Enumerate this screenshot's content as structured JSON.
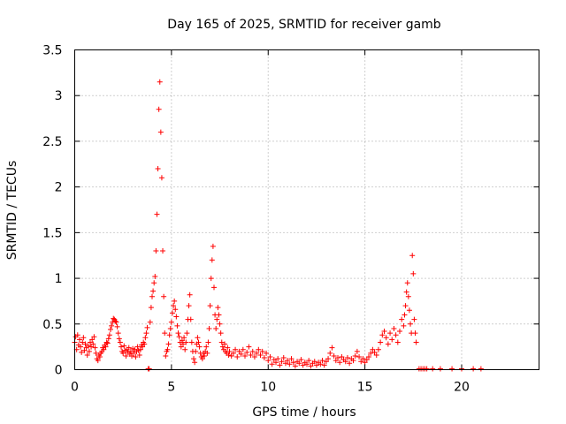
{
  "chart_data": {
    "type": "scatter",
    "title": "Day 165 of 2025, SRMTID for receiver gamb",
    "xlabel": "GPS time / hours",
    "ylabel": "SRMTID / TECUs",
    "xlim": [
      0,
      24
    ],
    "ylim": [
      0,
      3.5
    ],
    "x_ticks": [
      0,
      5,
      10,
      15,
      20
    ],
    "x_tick_labels": [
      "0",
      "5",
      "10",
      "15",
      "20"
    ],
    "y_ticks": [
      0,
      0.5,
      1,
      1.5,
      2,
      2.5,
      3,
      3.5
    ],
    "y_tick_labels": [
      "0",
      "0.5",
      "1",
      "1.5",
      "2",
      "2.5",
      "3",
      "3.5"
    ],
    "grid": true,
    "marker": "plus",
    "color": "#ff0000",
    "series": [
      {
        "name": "SRMTID",
        "points": [
          [
            0.0,
            0.3
          ],
          [
            0.05,
            0.36
          ],
          [
            0.1,
            0.22
          ],
          [
            0.15,
            0.38
          ],
          [
            0.2,
            0.27
          ],
          [
            0.25,
            0.33
          ],
          [
            0.3,
            0.25
          ],
          [
            0.35,
            0.19
          ],
          [
            0.4,
            0.3
          ],
          [
            0.45,
            0.35
          ],
          [
            0.5,
            0.21
          ],
          [
            0.55,
            0.28
          ],
          [
            0.6,
            0.24
          ],
          [
            0.65,
            0.16
          ],
          [
            0.7,
            0.26
          ],
          [
            0.75,
            0.2
          ],
          [
            0.8,
            0.3
          ],
          [
            0.85,
            0.25
          ],
          [
            0.9,
            0.33
          ],
          [
            0.95,
            0.28
          ],
          [
            1.0,
            0.36
          ],
          [
            1.05,
            0.24
          ],
          [
            1.1,
            0.18
          ],
          [
            1.15,
            0.12
          ],
          [
            1.2,
            0.1
          ],
          [
            1.25,
            0.16
          ],
          [
            1.3,
            0.14
          ],
          [
            1.35,
            0.18
          ],
          [
            1.4,
            0.2
          ],
          [
            1.45,
            0.24
          ],
          [
            1.5,
            0.22
          ],
          [
            1.55,
            0.27
          ],
          [
            1.6,
            0.25
          ],
          [
            1.65,
            0.3
          ],
          [
            1.7,
            0.29
          ],
          [
            1.75,
            0.34
          ],
          [
            1.8,
            0.38
          ],
          [
            1.85,
            0.44
          ],
          [
            1.9,
            0.48
          ],
          [
            1.95,
            0.52
          ],
          [
            2.0,
            0.56
          ],
          [
            2.05,
            0.55
          ],
          [
            2.1,
            0.53
          ],
          [
            2.15,
            0.52
          ],
          [
            2.2,
            0.47
          ],
          [
            2.25,
            0.4
          ],
          [
            2.3,
            0.34
          ],
          [
            2.35,
            0.3
          ],
          [
            2.4,
            0.25
          ],
          [
            2.45,
            0.2
          ],
          [
            2.5,
            0.18
          ],
          [
            2.55,
            0.26
          ],
          [
            2.6,
            0.21
          ],
          [
            2.65,
            0.15
          ],
          [
            2.7,
            0.22
          ],
          [
            2.75,
            0.19
          ],
          [
            2.8,
            0.24
          ],
          [
            2.85,
            0.17
          ],
          [
            2.9,
            0.2
          ],
          [
            2.95,
            0.15
          ],
          [
            3.0,
            0.23
          ],
          [
            3.05,
            0.18
          ],
          [
            3.1,
            0.22
          ],
          [
            3.15,
            0.14
          ],
          [
            3.2,
            0.2
          ],
          [
            3.25,
            0.25
          ],
          [
            3.3,
            0.21
          ],
          [
            3.35,
            0.16
          ],
          [
            3.4,
            0.22
          ],
          [
            3.45,
            0.27
          ],
          [
            3.5,
            0.25
          ],
          [
            3.55,
            0.3
          ],
          [
            3.6,
            0.28
          ],
          [
            3.65,
            0.35
          ],
          [
            3.7,
            0.4
          ],
          [
            3.75,
            0.46
          ],
          [
            3.8,
            0.01
          ],
          [
            3.85,
            0.01
          ],
          [
            3.9,
            0.52
          ],
          [
            3.95,
            0.68
          ],
          [
            4.0,
            0.8
          ],
          [
            4.05,
            0.86
          ],
          [
            4.1,
            0.95
          ],
          [
            4.15,
            1.02
          ],
          [
            4.2,
            1.3
          ],
          [
            4.25,
            1.7
          ],
          [
            4.3,
            2.2
          ],
          [
            4.35,
            2.85
          ],
          [
            4.4,
            3.15
          ],
          [
            4.45,
            2.6
          ],
          [
            4.5,
            2.1
          ],
          [
            4.55,
            1.3
          ],
          [
            4.6,
            0.8
          ],
          [
            4.65,
            0.4
          ],
          [
            4.7,
            0.15
          ],
          [
            4.75,
            0.2
          ],
          [
            4.8,
            0.22
          ],
          [
            4.85,
            0.28
          ],
          [
            4.9,
            0.38
          ],
          [
            4.95,
            0.45
          ],
          [
            5.0,
            0.52
          ],
          [
            5.05,
            0.62
          ],
          [
            5.1,
            0.7
          ],
          [
            5.15,
            0.75
          ],
          [
            5.2,
            0.66
          ],
          [
            5.25,
            0.58
          ],
          [
            5.3,
            0.48
          ],
          [
            5.35,
            0.4
          ],
          [
            5.4,
            0.36
          ],
          [
            5.45,
            0.3
          ],
          [
            5.5,
            0.25
          ],
          [
            5.55,
            0.32
          ],
          [
            5.6,
            0.28
          ],
          [
            5.65,
            0.35
          ],
          [
            5.7,
            0.22
          ],
          [
            5.75,
            0.3
          ],
          [
            5.8,
            0.4
          ],
          [
            5.85,
            0.55
          ],
          [
            5.9,
            0.7
          ],
          [
            5.95,
            0.82
          ],
          [
            6.0,
            0.55
          ],
          [
            6.05,
            0.3
          ],
          [
            6.1,
            0.2
          ],
          [
            6.15,
            0.12
          ],
          [
            6.2,
            0.08
          ],
          [
            6.25,
            0.2
          ],
          [
            6.3,
            0.28
          ],
          [
            6.35,
            0.35
          ],
          [
            6.4,
            0.3
          ],
          [
            6.45,
            0.25
          ],
          [
            6.5,
            0.18
          ],
          [
            6.55,
            0.14
          ],
          [
            6.6,
            0.12
          ],
          [
            6.65,
            0.18
          ],
          [
            6.7,
            0.15
          ],
          [
            6.75,
            0.2
          ],
          [
            6.8,
            0.25
          ],
          [
            6.85,
            0.18
          ],
          [
            6.9,
            0.3
          ],
          [
            6.95,
            0.45
          ],
          [
            7.0,
            0.7
          ],
          [
            7.05,
            1.0
          ],
          [
            7.1,
            1.2
          ],
          [
            7.15,
            1.35
          ],
          [
            7.2,
            0.9
          ],
          [
            7.25,
            0.6
          ],
          [
            7.3,
            0.45
          ],
          [
            7.35,
            0.55
          ],
          [
            7.4,
            0.68
          ],
          [
            7.45,
            0.6
          ],
          [
            7.5,
            0.5
          ],
          [
            7.55,
            0.4
          ],
          [
            7.6,
            0.3
          ],
          [
            7.65,
            0.25
          ],
          [
            7.7,
            0.22
          ],
          [
            7.75,
            0.28
          ],
          [
            7.8,
            0.2
          ],
          [
            7.85,
            0.18
          ],
          [
            7.9,
            0.24
          ],
          [
            7.95,
            0.16
          ],
          [
            8.0,
            0.2
          ],
          [
            8.1,
            0.15
          ],
          [
            8.2,
            0.18
          ],
          [
            8.3,
            0.22
          ],
          [
            8.4,
            0.14
          ],
          [
            8.5,
            0.2
          ],
          [
            8.6,
            0.17
          ],
          [
            8.7,
            0.22
          ],
          [
            8.8,
            0.15
          ],
          [
            8.9,
            0.19
          ],
          [
            9.0,
            0.25
          ],
          [
            9.1,
            0.16
          ],
          [
            9.2,
            0.2
          ],
          [
            9.3,
            0.14
          ],
          [
            9.4,
            0.18
          ],
          [
            9.5,
            0.22
          ],
          [
            9.6,
            0.16
          ],
          [
            9.7,
            0.2
          ],
          [
            9.8,
            0.13
          ],
          [
            9.9,
            0.18
          ],
          [
            10.0,
            0.1
          ],
          [
            10.1,
            0.14
          ],
          [
            10.2,
            0.06
          ],
          [
            10.3,
            0.11
          ],
          [
            10.4,
            0.08
          ],
          [
            10.5,
            0.12
          ],
          [
            10.6,
            0.05
          ],
          [
            10.7,
            0.09
          ],
          [
            10.8,
            0.13
          ],
          [
            10.9,
            0.07
          ],
          [
            11.0,
            0.1
          ],
          [
            11.1,
            0.06
          ],
          [
            11.2,
            0.12
          ],
          [
            11.3,
            0.08
          ],
          [
            11.4,
            0.04
          ],
          [
            11.5,
            0.09
          ],
          [
            11.6,
            0.07
          ],
          [
            11.7,
            0.11
          ],
          [
            11.8,
            0.05
          ],
          [
            11.9,
            0.08
          ],
          [
            12.0,
            0.06
          ],
          [
            12.1,
            0.1
          ],
          [
            12.2,
            0.04
          ],
          [
            12.3,
            0.07
          ],
          [
            12.4,
            0.09
          ],
          [
            12.5,
            0.05
          ],
          [
            12.6,
            0.08
          ],
          [
            12.7,
            0.06
          ],
          [
            12.8,
            0.1
          ],
          [
            12.9,
            0.05
          ],
          [
            13.0,
            0.09
          ],
          [
            13.1,
            0.12
          ],
          [
            13.2,
            0.18
          ],
          [
            13.3,
            0.24
          ],
          [
            13.4,
            0.15
          ],
          [
            13.5,
            0.1
          ],
          [
            13.6,
            0.13
          ],
          [
            13.7,
            0.08
          ],
          [
            13.8,
            0.14
          ],
          [
            13.9,
            0.11
          ],
          [
            14.0,
            0.09
          ],
          [
            14.1,
            0.13
          ],
          [
            14.2,
            0.07
          ],
          [
            14.3,
            0.12
          ],
          [
            14.4,
            0.1
          ],
          [
            14.5,
            0.15
          ],
          [
            14.6,
            0.2
          ],
          [
            14.7,
            0.14
          ],
          [
            14.8,
            0.09
          ],
          [
            14.9,
            0.12
          ],
          [
            15.0,
            0.08
          ],
          [
            15.1,
            0.11
          ],
          [
            15.2,
            0.14
          ],
          [
            15.3,
            0.18
          ],
          [
            15.4,
            0.22
          ],
          [
            15.5,
            0.19
          ],
          [
            15.6,
            0.16
          ],
          [
            15.7,
            0.22
          ],
          [
            15.8,
            0.3
          ],
          [
            15.9,
            0.38
          ],
          [
            16.0,
            0.42
          ],
          [
            16.1,
            0.35
          ],
          [
            16.2,
            0.28
          ],
          [
            16.3,
            0.4
          ],
          [
            16.4,
            0.33
          ],
          [
            16.5,
            0.45
          ],
          [
            16.6,
            0.38
          ],
          [
            16.7,
            0.3
          ],
          [
            16.8,
            0.42
          ],
          [
            16.9,
            0.55
          ],
          [
            17.0,
            0.48
          ],
          [
            17.05,
            0.6
          ],
          [
            17.1,
            0.7
          ],
          [
            17.15,
            0.85
          ],
          [
            17.2,
            0.95
          ],
          [
            17.25,
            0.8
          ],
          [
            17.3,
            0.65
          ],
          [
            17.35,
            0.5
          ],
          [
            17.4,
            0.4
          ],
          [
            17.45,
            1.25
          ],
          [
            17.5,
            1.05
          ],
          [
            17.55,
            0.55
          ],
          [
            17.6,
            0.4
          ],
          [
            17.65,
            0.3
          ],
          [
            17.8,
            0.01
          ],
          [
            17.9,
            0.01
          ],
          [
            18.0,
            0.01
          ],
          [
            18.1,
            0.01
          ],
          [
            18.2,
            0.01
          ],
          [
            18.5,
            0.01
          ],
          [
            18.9,
            0.01
          ],
          [
            19.5,
            0.01
          ],
          [
            20.0,
            0.01
          ],
          [
            20.6,
            0.01
          ],
          [
            21.0,
            0.01
          ]
        ]
      }
    ]
  }
}
